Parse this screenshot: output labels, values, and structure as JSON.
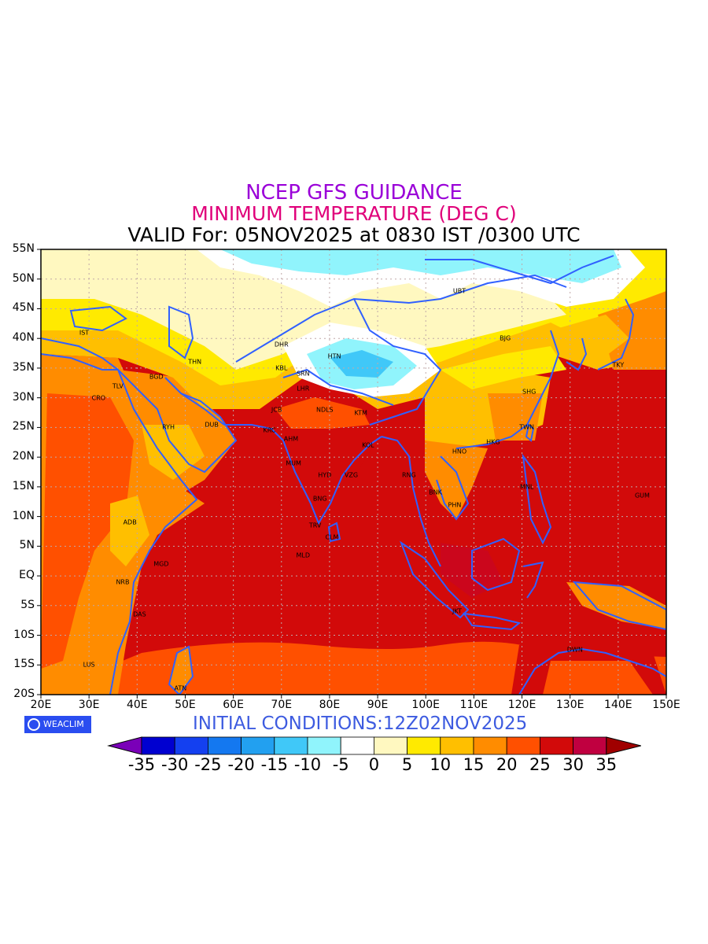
{
  "titles": {
    "line1": "NCEP GFS GUIDANCE",
    "line2": "MINIMUM TEMPERATURE (DEG C)",
    "line3": "VALID For: 05NOV2025 at 0830 IST /0300 UTC"
  },
  "initial_conditions": "INITIAL CONDITIONS:12Z02NOV2025",
  "logo_text": "WEACLIM",
  "map": {
    "lat_range": [
      -20,
      55
    ],
    "lon_range": [
      20,
      150
    ],
    "lat_labels": [
      "55N",
      "50N",
      "45N",
      "40N",
      "35N",
      "30N",
      "25N",
      "20N",
      "15N",
      "10N",
      "5N",
      "EQ",
      "5S",
      "10S",
      "15S",
      "20S"
    ],
    "lon_labels": [
      "20E",
      "30E",
      "40E",
      "50E",
      "60E",
      "70E",
      "80E",
      "90E",
      "100E",
      "110E",
      "120E",
      "130E",
      "140E",
      "150E"
    ],
    "cities": [
      {
        "code": "UBT",
        "lon": 107,
        "lat": 48
      },
      {
        "code": "BJG",
        "lon": 116.5,
        "lat": 40
      },
      {
        "code": "TKY",
        "lon": 140,
        "lat": 35.5
      },
      {
        "code": "SHG",
        "lon": 121.5,
        "lat": 31
      },
      {
        "code": "TWN",
        "lon": 121,
        "lat": 25
      },
      {
        "code": "HKG",
        "lon": 114,
        "lat": 22.5
      },
      {
        "code": "HNO",
        "lon": 107,
        "lat": 21
      },
      {
        "code": "MNL",
        "lon": 121,
        "lat": 15
      },
      {
        "code": "GUM",
        "lon": 145,
        "lat": 13.5
      },
      {
        "code": "BNK",
        "lon": 102,
        "lat": 14
      },
      {
        "code": "PHN",
        "lon": 106,
        "lat": 12
      },
      {
        "code": "RNG",
        "lon": 96.5,
        "lat": 17
      },
      {
        "code": "JKT",
        "lon": 106.5,
        "lat": -6
      },
      {
        "code": "DWN",
        "lon": 131,
        "lat": -12.5
      },
      {
        "code": "HTN",
        "lon": 81,
        "lat": 37
      },
      {
        "code": "DHR",
        "lon": 70,
        "lat": 39
      },
      {
        "code": "KBL",
        "lon": 70,
        "lat": 35
      },
      {
        "code": "SRN",
        "lon": 74.5,
        "lat": 34
      },
      {
        "code": "LHR",
        "lon": 74.5,
        "lat": 31.5
      },
      {
        "code": "JCB",
        "lon": 69,
        "lat": 28
      },
      {
        "code": "NDLS",
        "lon": 79,
        "lat": 28
      },
      {
        "code": "KTM",
        "lon": 86.5,
        "lat": 27.5
      },
      {
        "code": "KRC",
        "lon": 67.5,
        "lat": 24.5
      },
      {
        "code": "AHM",
        "lon": 72,
        "lat": 23
      },
      {
        "code": "KOL",
        "lon": 88,
        "lat": 22
      },
      {
        "code": "MUM",
        "lon": 72.5,
        "lat": 19
      },
      {
        "code": "HYD",
        "lon": 79,
        "lat": 17
      },
      {
        "code": "VZG",
        "lon": 84.5,
        "lat": 17
      },
      {
        "code": "BNG",
        "lon": 78,
        "lat": 13
      },
      {
        "code": "TRV",
        "lon": 77,
        "lat": 8.5
      },
      {
        "code": "CLM",
        "lon": 80.5,
        "lat": 6.5
      },
      {
        "code": "MLD",
        "lon": 74.5,
        "lat": 3.5
      },
      {
        "code": "IST",
        "lon": 29,
        "lat": 41
      },
      {
        "code": "TLV",
        "lon": 36,
        "lat": 32
      },
      {
        "code": "CRO",
        "lon": 32,
        "lat": 30
      },
      {
        "code": "BGD",
        "lon": 44,
        "lat": 33.5
      },
      {
        "code": "THN",
        "lon": 52,
        "lat": 36
      },
      {
        "code": "RYH",
        "lon": 46.5,
        "lat": 25
      },
      {
        "code": "DUB",
        "lon": 55.5,
        "lat": 25.5
      },
      {
        "code": "ADB",
        "lon": 38.5,
        "lat": 9
      },
      {
        "code": "MGD",
        "lon": 45,
        "lat": 2
      },
      {
        "code": "NRB",
        "lon": 37,
        "lat": -1
      },
      {
        "code": "DAS",
        "lon": 40.5,
        "lat": -6.5
      },
      {
        "code": "LUS",
        "lon": 30,
        "lat": -15
      },
      {
        "code": "ATN",
        "lon": 49,
        "lat": -19
      }
    ]
  },
  "colorbar": {
    "labels": [
      "-35",
      "-30",
      "-25",
      "-20",
      "-15",
      "-10",
      "-5",
      "0",
      "5",
      "10",
      "15",
      "20",
      "25",
      "30",
      "35"
    ],
    "colors": [
      "#7a00b8",
      "#0000d0",
      "#1440f0",
      "#1478f0",
      "#22a0f0",
      "#40c8f8",
      "#90f4fc",
      "#ffffff",
      "#fff8c0",
      "#ffea00",
      "#ffbf00",
      "#ff8c00",
      "#ff5000",
      "#d20a0a",
      "#c00040",
      "#a00000"
    ]
  }
}
